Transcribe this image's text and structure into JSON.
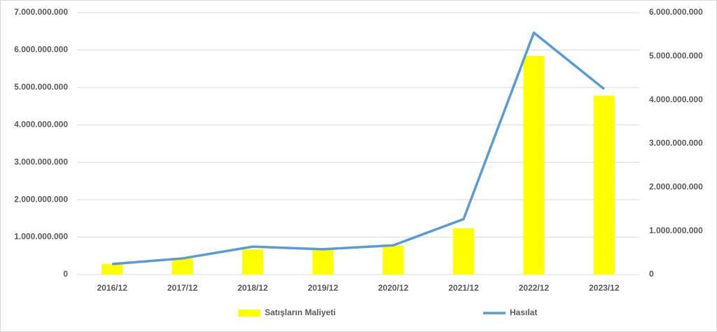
{
  "chart_data": {
    "type": "bar-line",
    "categories": [
      "2016/12",
      "2017/12",
      "2018/12",
      "2019/12",
      "2020/12",
      "2021/12",
      "2022/12",
      "2023/12"
    ],
    "series": [
      {
        "name": "Satışların Maliyeti",
        "type": "bar",
        "color": "#ffff00",
        "values": [
          280000000,
          430000000,
          670000000,
          660000000,
          770000000,
          1240000000,
          5840000000,
          4780000000
        ]
      },
      {
        "name": "Hasılat",
        "type": "line",
        "axis": "y2",
        "color": "#5b9bd5",
        "values": [
          240000000,
          370000000,
          640000000,
          580000000,
          670000000,
          1270000000,
          5540000000,
          4250000000
        ]
      }
    ],
    "ylim": [
      0,
      7000000000
    ],
    "yticks": [
      0,
      {
        "value": 1000000000,
        "label": "1.000.000.000"
      },
      {
        "value": 2000000000,
        "label": "2.000.000.000"
      },
      {
        "value": 3000000000,
        "label": "3.000.000.000"
      },
      {
        "value": 4000000000,
        "label": "4.000.000.000"
      },
      {
        "value": 5000000000,
        "label": "5.000.000.000"
      },
      {
        "value": 6000000000,
        "label": "6.000.000.000"
      },
      {
        "value": 7000000000,
        "label": "7.000.000.000"
      }
    ],
    "y2lim": [
      0,
      6000000000
    ],
    "y2ticks": [
      0,
      {
        "value": 1000000000,
        "label": "1.000.000.000"
      },
      {
        "value": 2000000000,
        "label": "2.000.000.000"
      },
      {
        "value": 3000000000,
        "label": "3.000.000.000"
      },
      {
        "value": 4000000000,
        "label": "4.000.000.000"
      },
      {
        "value": 5000000000,
        "label": "5.000.000.000"
      },
      {
        "value": 6000000000,
        "label": "6.000.000.000"
      }
    ],
    "grid": true,
    "legend": "bottom"
  }
}
